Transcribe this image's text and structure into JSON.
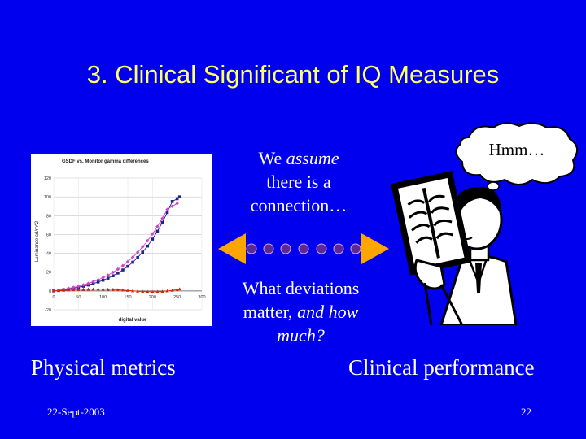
{
  "slide": {
    "title": "3. Clinical Significant of IQ Measures",
    "assume_text": {
      "line1_start": "We ",
      "line1_italic": "assume",
      "line2": "there is a",
      "line3": "connection…"
    },
    "deviations_text": {
      "line1": "What deviations",
      "line2_start": "matter, ",
      "line2_italic": "and how",
      "line3_italic": "much?"
    },
    "thought_bubble": "Hmm…",
    "label_left": "Physical metrics",
    "label_right": "Clinical performance",
    "footer_date": "22-Sept-2003",
    "footer_page": "22"
  },
  "colors": {
    "background": "#0000ee",
    "title": "#ffff66",
    "arrow": "#ffa500",
    "dots": "#5b2a96"
  },
  "icons": [
    "double-arrow-icon",
    "thought-bubble-icon",
    "radiologist-icon"
  ],
  "chart_data": {
    "type": "line",
    "title": "GSDF vs. Monitor gamma differences",
    "xlabel": "digital value",
    "ylabel": "Luminance cd/m^2",
    "xlim": [
      0,
      300
    ],
    "ylim": [
      -20,
      120
    ],
    "x_ticks": [
      "0",
      "50",
      "100",
      "150",
      "200",
      "250",
      "300"
    ],
    "y_ticks": [
      "-20",
      "0",
      "20",
      "40",
      "60",
      "80",
      "100",
      "120"
    ],
    "grid": true,
    "series": [
      {
        "color": "#22228b",
        "marker": "square",
        "x": [
          0,
          10,
          20,
          30,
          40,
          50,
          60,
          70,
          80,
          90,
          100,
          110,
          120,
          130,
          140,
          150,
          160,
          170,
          180,
          190,
          200,
          210,
          220,
          230,
          240,
          250,
          255
        ],
        "y": [
          0,
          0.6,
          1.3,
          2.0,
          2.9,
          3.9,
          5.0,
          6.3,
          7.8,
          9.5,
          11.4,
          13.6,
          16.1,
          19.0,
          22.3,
          26.1,
          30.5,
          35.5,
          41.2,
          47.7,
          55.1,
          63.5,
          72.9,
          83.4,
          95.1,
          98.0,
          100
        ]
      },
      {
        "color": "#cc44cc",
        "marker": "diamond",
        "x": [
          0,
          10,
          20,
          30,
          40,
          50,
          60,
          70,
          80,
          90,
          100,
          110,
          120,
          130,
          140,
          150,
          160,
          170,
          180,
          190,
          200,
          210,
          220,
          230,
          240,
          250
        ],
        "y": [
          0,
          0.8,
          1.7,
          2.7,
          3.8,
          5.0,
          6.4,
          8.0,
          9.8,
          11.9,
          14.2,
          16.8,
          19.8,
          23.1,
          26.9,
          31.1,
          35.8,
          41.0,
          46.9,
          53.4,
          60.6,
          68.5,
          77.2,
          86.7,
          90.0,
          93.0
        ]
      },
      {
        "color": "#dd2200",
        "marker": "triangle",
        "x": [
          0,
          10,
          20,
          30,
          40,
          50,
          60,
          70,
          80,
          90,
          100,
          110,
          120,
          130,
          140,
          150,
          160,
          170,
          180,
          190,
          200,
          210,
          220,
          230,
          240,
          250,
          255
        ],
        "y": [
          0,
          0.3,
          0.6,
          0.9,
          1.2,
          1.5,
          1.7,
          1.8,
          1.9,
          1.9,
          1.8,
          1.7,
          1.5,
          1.2,
          0.9,
          0.5,
          0.1,
          -0.3,
          -0.6,
          -0.8,
          -0.9,
          -0.8,
          -0.5,
          0.0,
          0.6,
          1.4,
          2.0
        ]
      }
    ]
  }
}
